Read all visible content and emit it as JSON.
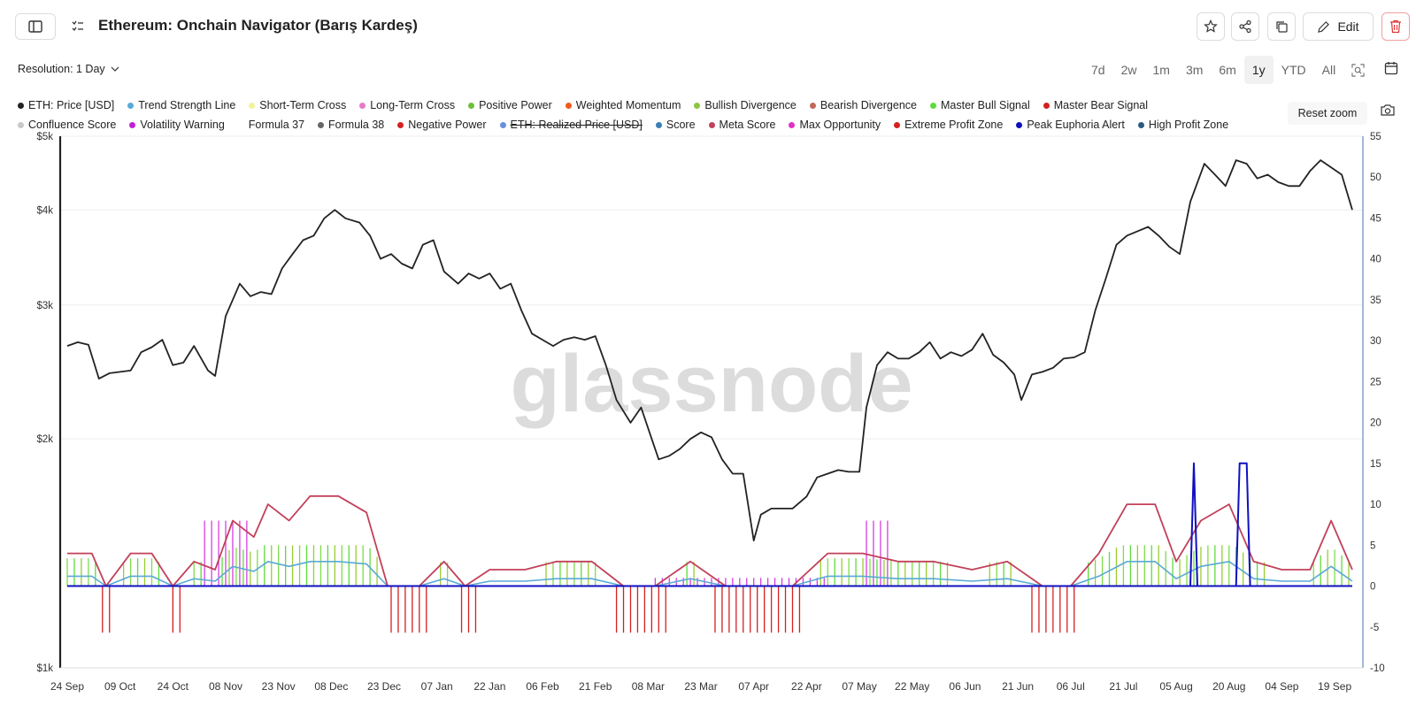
{
  "header": {
    "title": "Ethereum: Onchain Navigator (Barış Kardeş)",
    "edit_label": "Edit"
  },
  "toolbar": {
    "resolution_label": "Resolution: 1 Day",
    "ranges": [
      "7d",
      "2w",
      "1m",
      "3m",
      "6m",
      "1y",
      "YTD",
      "All"
    ],
    "active_range": "1y",
    "reset_zoom": "Reset zoom"
  },
  "legend": {
    "row1": [
      {
        "label": "ETH: Price [USD]",
        "color": "#222222"
      },
      {
        "label": "Trend Strength Line",
        "color": "#5aa9d6"
      },
      {
        "label": "Short-Term Cross",
        "color": "#f2f29a"
      },
      {
        "label": "Long-Term Cross",
        "color": "#e879c9"
      },
      {
        "label": "Positive Power",
        "color": "#6fbf3a"
      },
      {
        "label": "Weighted Momentum",
        "color": "#f05a1a"
      },
      {
        "label": "Bullish Divergence",
        "color": "#8cc63f"
      },
      {
        "label": "Bearish Divergence",
        "color": "#c0685a"
      },
      {
        "label": "Master Bull Signal",
        "color": "#5ddc3a"
      },
      {
        "label": "Master Bear Signal",
        "color": "#d42020"
      }
    ],
    "row2": [
      {
        "label": "Confluence Score",
        "color": "#c8c8c8"
      },
      {
        "label": "Volatility Warning",
        "color": "#c21fd6"
      },
      {
        "label": "Formula 37",
        "color": ""
      },
      {
        "label": "Formula 38",
        "color": "#666666"
      },
      {
        "label": "Negative Power",
        "color": "#d42020"
      },
      {
        "label": "ETH: Realized Price [USD]",
        "color": "#6a8fe0",
        "hidden": true
      },
      {
        "label": "Score",
        "color": "#3a7fb8"
      },
      {
        "label": "Meta Score",
        "color": "#c2405a"
      },
      {
        "label": "Max Opportunity",
        "color": "#e030c8"
      },
      {
        "label": "Extreme Profit Zone",
        "color": "#d42020"
      },
      {
        "label": "Peak Euphoria Alert",
        "color": "#1010c0"
      },
      {
        "label": "High Profit Zone",
        "color": "#2a5a80"
      }
    ]
  },
  "watermark": "glassnode",
  "chart_data": {
    "type": "line",
    "x_tick_labels": [
      "24 Sep",
      "09 Oct",
      "24 Oct",
      "08 Nov",
      "23 Nov",
      "08 Dec",
      "23 Dec",
      "07 Jan",
      "22 Jan",
      "06 Feb",
      "21 Feb",
      "08 Mar",
      "23 Mar",
      "07 Apr",
      "22 Apr",
      "07 May",
      "22 May",
      "06 Jun",
      "21 Jun",
      "06 Jul",
      "21 Jul",
      "05 Aug",
      "20 Aug",
      "04 Sep",
      "19 Sep"
    ],
    "y_left_scale": "log",
    "y_left_ticks": [
      "$1k",
      "$2k",
      "$3k",
      "$4k",
      "$5k"
    ],
    "y_left_values": [
      1000,
      2000,
      3000,
      4000,
      5000
    ],
    "y_right_ticks": [
      "-10",
      "-5",
      "0",
      "5",
      "10",
      "15",
      "20",
      "25",
      "30",
      "35",
      "40",
      "45",
      "50",
      "55"
    ],
    "ylim_left": [
      1000,
      5000
    ],
    "ylim_right": [
      -10,
      55
    ],
    "series": [
      {
        "name": "ETH: Price [USD]",
        "color": "#222222",
        "x": [
          "2024-09-24",
          "2024-09-27",
          "2024-09-30",
          "2024-10-03",
          "2024-10-06",
          "2024-10-09",
          "2024-10-12",
          "2024-10-15",
          "2024-10-18",
          "2024-10-21",
          "2024-10-24",
          "2024-10-27",
          "2024-10-30",
          "2024-11-03",
          "2024-11-05",
          "2024-11-08",
          "2024-11-12",
          "2024-11-15",
          "2024-11-18",
          "2024-11-21",
          "2024-11-24",
          "2024-11-27",
          "2024-11-30",
          "2024-12-03",
          "2024-12-06",
          "2024-12-09",
          "2024-12-12",
          "2024-12-16",
          "2024-12-19",
          "2024-12-22",
          "2024-12-25",
          "2024-12-28",
          "2024-12-31",
          "2025-01-03",
          "2025-01-06",
          "2025-01-09",
          "2025-01-13",
          "2025-01-16",
          "2025-01-19",
          "2025-01-22",
          "2025-01-25",
          "2025-01-28",
          "2025-01-31",
          "2025-02-03",
          "2025-02-06",
          "2025-02-09",
          "2025-02-12",
          "2025-02-15",
          "2025-02-18",
          "2025-02-21",
          "2025-02-24",
          "2025-02-27",
          "2025-03-03",
          "2025-03-06",
          "2025-03-09",
          "2025-03-11",
          "2025-03-14",
          "2025-03-17",
          "2025-03-20",
          "2025-03-23",
          "2025-03-26",
          "2025-03-29",
          "2025-04-01",
          "2025-04-04",
          "2025-04-07",
          "2025-04-09",
          "2025-04-12",
          "2025-04-15",
          "2025-04-18",
          "2025-04-22",
          "2025-04-25",
          "2025-04-28",
          "2025-05-01",
          "2025-05-04",
          "2025-05-07",
          "2025-05-09",
          "2025-05-12",
          "2025-05-15",
          "2025-05-18",
          "2025-05-21",
          "2025-05-24",
          "2025-05-27",
          "2025-05-30",
          "2025-06-02",
          "2025-06-05",
          "2025-06-08",
          "2025-06-11",
          "2025-06-14",
          "2025-06-17",
          "2025-06-20",
          "2025-06-22",
          "2025-06-25",
          "2025-06-28",
          "2025-07-01",
          "2025-07-04",
          "2025-07-07",
          "2025-07-10",
          "2025-07-13",
          "2025-07-16",
          "2025-07-19",
          "2025-07-22",
          "2025-07-25",
          "2025-07-28",
          "2025-07-31",
          "2025-08-03",
          "2025-08-06",
          "2025-08-09",
          "2025-08-13",
          "2025-08-16",
          "2025-08-19",
          "2025-08-22",
          "2025-08-25",
          "2025-08-28",
          "2025-08-31",
          "2025-09-03",
          "2025-09-06",
          "2025-09-09",
          "2025-09-12",
          "2025-09-15",
          "2025-09-18",
          "2025-09-21",
          "2025-09-24"
        ],
        "values": [
          2650,
          2680,
          2660,
          2400,
          2440,
          2450,
          2460,
          2600,
          2640,
          2700,
          2500,
          2520,
          2650,
          2460,
          2420,
          2900,
          3200,
          3080,
          3120,
          3100,
          3350,
          3500,
          3650,
          3700,
          3900,
          4000,
          3900,
          3850,
          3700,
          3450,
          3500,
          3400,
          3350,
          3600,
          3650,
          3320,
          3200,
          3300,
          3250,
          3300,
          3150,
          3200,
          2950,
          2750,
          2700,
          2650,
          2700,
          2720,
          2700,
          2730,
          2500,
          2250,
          2100,
          2200,
          2000,
          1880,
          1900,
          1940,
          2000,
          2040,
          2010,
          1880,
          1800,
          1800,
          1470,
          1590,
          1620,
          1620,
          1620,
          1680,
          1780,
          1800,
          1820,
          1810,
          1810,
          2200,
          2500,
          2600,
          2550,
          2550,
          2600,
          2680,
          2550,
          2600,
          2570,
          2620,
          2750,
          2580,
          2520,
          2430,
          2250,
          2430,
          2450,
          2480,
          2550,
          2560,
          2600,
          2950,
          3250,
          3600,
          3700,
          3750,
          3800,
          3700,
          3580,
          3500,
          4100,
          4600,
          4450,
          4300,
          4650,
          4600,
          4400,
          4450,
          4350,
          4300,
          4300,
          4500,
          4650,
          4550,
          4450,
          4000
        ]
      },
      {
        "name": "Meta Score",
        "color": "#c2405a",
        "note_values_right_axis": true,
        "x": [
          "2024-09-24",
          "2024-10-01",
          "2024-10-05",
          "2024-10-12",
          "2024-10-18",
          "2024-10-24",
          "2024-10-30",
          "2024-11-05",
          "2024-11-10",
          "2024-11-16",
          "2024-11-20",
          "2024-11-26",
          "2024-12-02",
          "2024-12-10",
          "2024-12-18",
          "2024-12-24",
          "2025-01-02",
          "2025-01-09",
          "2025-01-15",
          "2025-01-22",
          "2025-02-01",
          "2025-02-10",
          "2025-02-20",
          "2025-03-01",
          "2025-03-10",
          "2025-03-20",
          "2025-03-30",
          "2025-04-08",
          "2025-04-18",
          "2025-04-28",
          "2025-05-08",
          "2025-05-18",
          "2025-05-28",
          "2025-06-08",
          "2025-06-18",
          "2025-06-28",
          "2025-07-06",
          "2025-07-14",
          "2025-07-22",
          "2025-07-30",
          "2025-08-05",
          "2025-08-12",
          "2025-08-20",
          "2025-08-27",
          "2025-09-04",
          "2025-09-12",
          "2025-09-18",
          "2025-09-24"
        ],
        "values": [
          4,
          4,
          0,
          4,
          4,
          0,
          3,
          2,
          8,
          6,
          10,
          8,
          11,
          11,
          9,
          0,
          0,
          3,
          0,
          2,
          2,
          3,
          3,
          0,
          0,
          3,
          0,
          0,
          0,
          4,
          4,
          3,
          3,
          2,
          3,
          0,
          0,
          4,
          10,
          10,
          3,
          8,
          10,
          3,
          2,
          2,
          8,
          2
        ]
      },
      {
        "name": "Peak Euphoria Alert",
        "color": "#1010c0",
        "x": [
          "2024-09-24",
          "2025-08-09",
          "2025-08-10",
          "2025-08-11",
          "2025-08-22",
          "2025-08-23",
          "2025-08-25",
          "2025-08-26",
          "2025-09-24"
        ],
        "values": [
          0,
          0,
          15,
          0,
          0,
          15,
          15,
          0,
          0
        ]
      }
    ]
  }
}
